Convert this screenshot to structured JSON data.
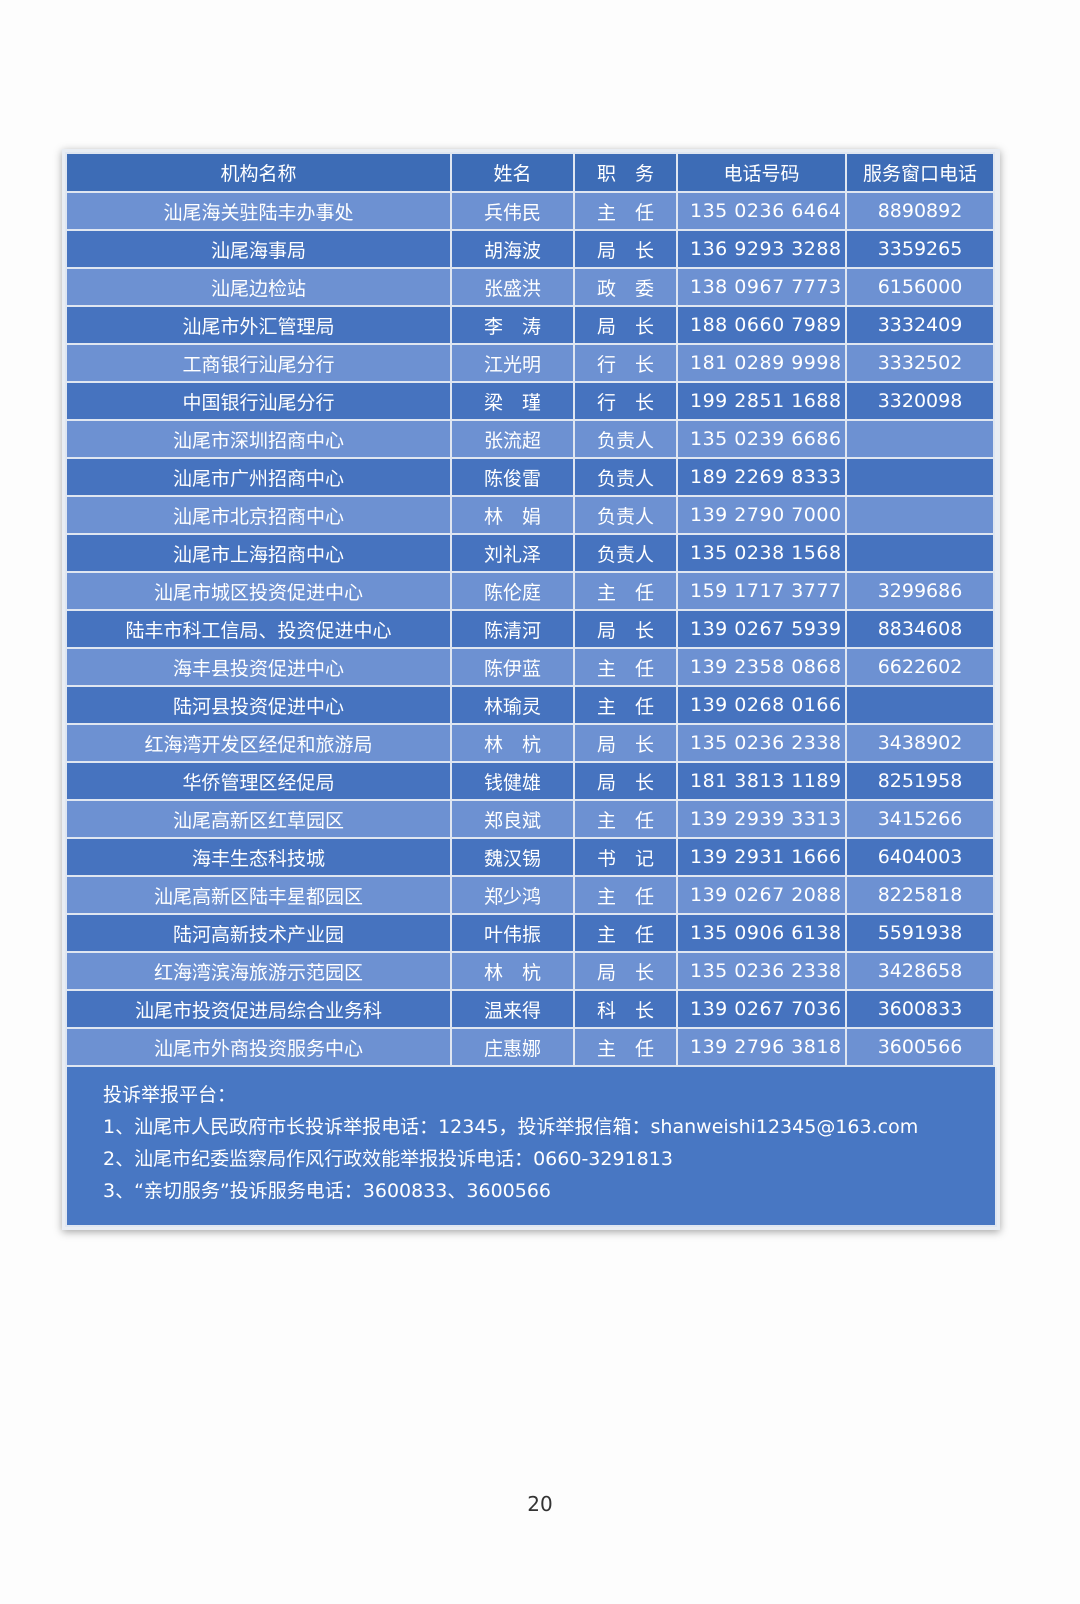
{
  "table": {
    "headers": [
      "机构名称",
      "姓名",
      "职　务",
      "电话号码",
      "服务窗口电话"
    ],
    "rows": [
      [
        "汕尾海关驻陆丰办事处",
        "兵伟民",
        "主　任",
        "135 0236 6464",
        "8890892"
      ],
      [
        "汕尾海事局",
        "胡海波",
        "局　长",
        "136 9293 3288",
        "3359265"
      ],
      [
        "汕尾边检站",
        "张盛洪",
        "政　委",
        "138 0967 7773",
        "6156000"
      ],
      [
        "汕尾市外汇管理局",
        "李　涛",
        "局　长",
        "188 0660 7989",
        "3332409"
      ],
      [
        "工商银行汕尾分行",
        "江光明",
        "行　长",
        "181 0289 9998",
        "3332502"
      ],
      [
        "中国银行汕尾分行",
        "梁　瑾",
        "行　长",
        "199 2851 1688",
        "3320098"
      ],
      [
        "汕尾市深圳招商中心",
        "张流超",
        "负责人",
        "135 0239 6686",
        ""
      ],
      [
        "汕尾市广州招商中心",
        "陈俊雷",
        "负责人",
        "189 2269 8333",
        ""
      ],
      [
        "汕尾市北京招商中心",
        "林　娟",
        "负责人",
        "139 2790 7000",
        ""
      ],
      [
        "汕尾市上海招商中心",
        "刘礼泽",
        "负责人",
        "135 0238 1568",
        ""
      ],
      [
        "汕尾市城区投资促进中心",
        "陈伦庭",
        "主　任",
        "159 1717 3777",
        "3299686"
      ],
      [
        "陆丰市科工信局、投资促进中心",
        "陈清河",
        "局　长",
        "139 0267 5939",
        "8834608"
      ],
      [
        "海丰县投资促进中心",
        "陈伊蓝",
        "主　任",
        "139 2358 0868",
        "6622602"
      ],
      [
        "陆河县投资促进中心",
        "林瑜灵",
        "主　任",
        "139 0268 0166",
        ""
      ],
      [
        "红海湾开发区经促和旅游局",
        "林　杭",
        "局　长",
        "135 0236 2338",
        "3438902"
      ],
      [
        "华侨管理区经促局",
        "钱健雄",
        "局　长",
        "181 3813 1189",
        "8251958"
      ],
      [
        "汕尾高新区红草园区",
        "郑良斌",
        "主　任",
        "139 2939 3313",
        "3415266"
      ],
      [
        "海丰生态科技城",
        "魏汉锡",
        "书　记",
        "139 2931 1666",
        "6404003"
      ],
      [
        "汕尾高新区陆丰星都园区",
        "郑少鸿",
        "主　任",
        "139 0267 2088",
        "8225818"
      ],
      [
        "陆河高新技术产业园",
        "叶伟振",
        "主　任",
        "135 0906 6138",
        "5591938"
      ],
      [
        "红海湾滨海旅游示范园区",
        "林　杭",
        "局　长",
        "135 0236 2338",
        "3428658"
      ],
      [
        "汕尾市投资促进局综合业务科",
        "温来得",
        "科　长",
        "139 0267 7036",
        "3600833"
      ],
      [
        "汕尾市外商投资服务中心",
        "庄惠娜",
        "主　任",
        "139 2796 3818",
        "3600566"
      ]
    ]
  },
  "footer": {
    "title": "投诉举报平台：",
    "lines": [
      "1、汕尾市人民政府市长投诉举报电话：12345，投诉举报信箱：shanweishi12345@163.com",
      "2、汕尾市纪委监察局作风行政效能举报投诉电话：0660-3291813",
      "3、“亲切服务”投诉服务电话：3600833、3600566"
    ]
  },
  "page_number": "20",
  "colors": {
    "header": "#3d6cb6",
    "row_light": "#6d91d2",
    "row_dark": "#4673bf",
    "text": "#ffffff"
  }
}
